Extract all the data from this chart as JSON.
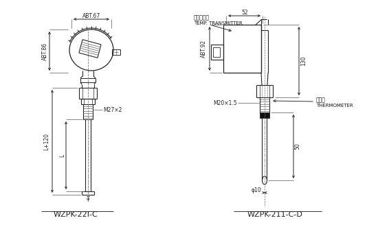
{
  "bg_color": "#ffffff",
  "line_color": "#222222",
  "title_left": "WZPK-22I-C",
  "title_right": "WZPK-211-C-D",
  "dim_abt67": "ABT.67",
  "dim_abt86": "ABT.86",
  "dim_L120": "L+120",
  "dim_L": "L",
  "dim_M27": "M27×2",
  "dim_52": "52",
  "dim_abt92": "ABT.92",
  "dim_130": "130",
  "dim_50": "50",
  "dim_M20": "M20×1.5",
  "dim_phi10": "φ10",
  "label_transmitter_cn": "温度传感器",
  "label_transmitter_en": "TEMP. TRANSMITTER",
  "label_thermo_cn": "温度计",
  "label_thermo_en": "THERMOMETER"
}
